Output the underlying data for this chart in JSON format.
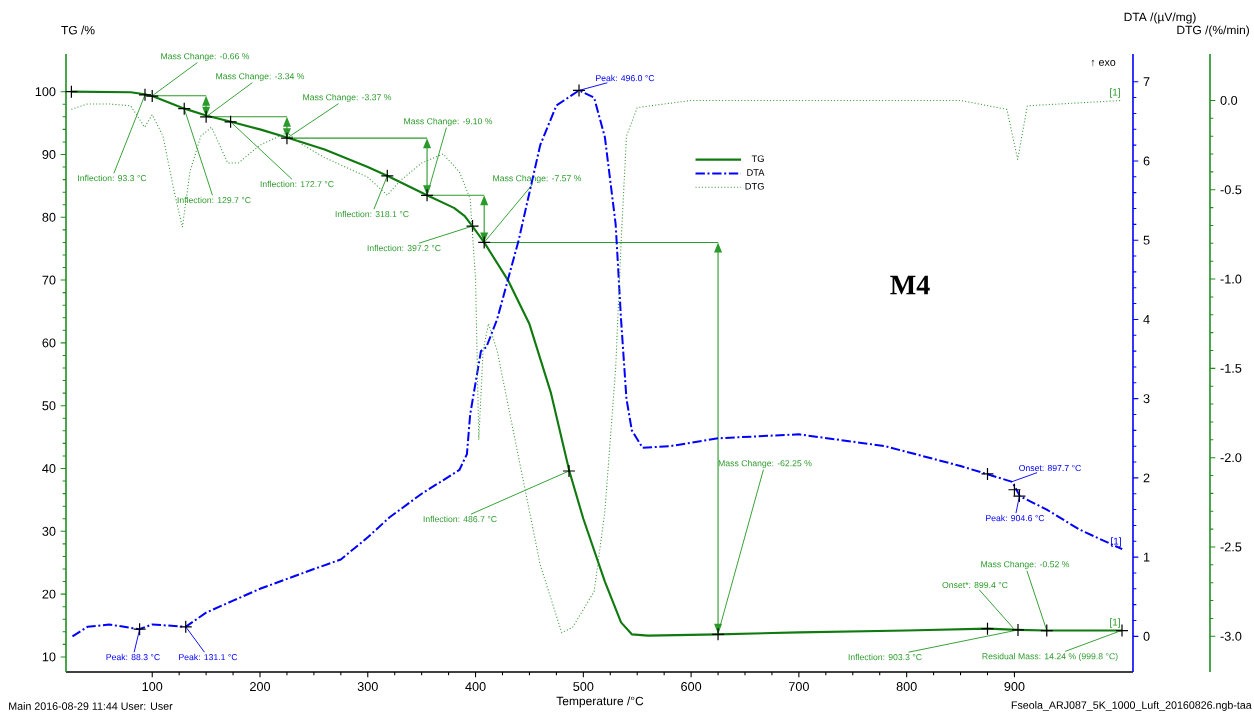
{
  "chart_data": {
    "type": "line",
    "xlabel": "Temperature /°C",
    "ylabel": "TG /%",
    "y2label": "DTA /(µV/mg)",
    "y3label": "DTG /(%/min)",
    "xlim": [
      20,
      1010
    ],
    "xticks": [
      100,
      200,
      300,
      400,
      500,
      600,
      700,
      800,
      900
    ],
    "ylim": [
      7.6,
      106
    ],
    "yticks": [
      10,
      20,
      30,
      40,
      50,
      60,
      70,
      80,
      90,
      100
    ],
    "y2lim": [
      -0.45,
      7.35
    ],
    "y2ticks": [
      0,
      1,
      2,
      3,
      4,
      5,
      6,
      7
    ],
    "y3lim": [
      -3.2,
      0.26
    ],
    "y3ticks": [
      {
        "value": -3,
        "label": "-3.0"
      },
      -2.5,
      {
        "value": -2,
        "label": "-2.0"
      },
      -1.5,
      {
        "value": -1,
        "label": "-1.0"
      },
      -0.5,
      {
        "value": 0,
        "label": "0.0"
      }
    ],
    "legend": "top",
    "series": [
      {
        "name": "TG",
        "color": "#107a10",
        "line_style": "solid",
        "x": [
          25,
          80,
          93,
          100,
          130,
          150,
          173,
          200,
          225,
          260,
          300,
          318,
          355,
          380,
          390,
          397,
          408,
          430,
          450,
          470,
          487,
          500,
          520,
          535,
          545,
          560,
          625,
          700,
          800,
          875,
          903,
          930,
          1000
        ],
        "values": [
          100,
          99.9,
          99.6,
          99.3,
          97.3,
          96.2,
          95.2,
          94,
          92.7,
          90.8,
          88,
          86.6,
          83.5,
          81.5,
          80.2,
          78.6,
          76,
          70,
          63,
          52,
          39.6,
          32,
          22,
          15.5,
          13.6,
          13.4,
          13.6,
          13.9,
          14.2,
          14.5,
          14.3,
          14.2,
          14.2
        ]
      },
      {
        "name": "DTA",
        "axis": "y2",
        "color": "#0000ff",
        "line_style": "dashed",
        "x": [
          26,
          40,
          60,
          88,
          100,
          131,
          150,
          175,
          200,
          250,
          275,
          300,
          320,
          350,
          385,
          392,
          395,
          400,
          405,
          410,
          420,
          430,
          440,
          450,
          460,
          475,
          496,
          510,
          520,
          530,
          535,
          540,
          545,
          555,
          580,
          625,
          700,
          780,
          850,
          898,
          905,
          930,
          960,
          1000
        ],
        "values": [
          0,
          0.12,
          0.15,
          0.09,
          0.15,
          0.12,
          0.3,
          0.45,
          0.6,
          0.85,
          0.97,
          1.25,
          1.5,
          1.8,
          2.1,
          2.3,
          2.8,
          3.2,
          3.6,
          3.65,
          4.0,
          4.5,
          5.0,
          5.6,
          6.2,
          6.7,
          6.89,
          6.8,
          6.3,
          5.2,
          4.0,
          3.0,
          2.6,
          2.38,
          2.4,
          2.5,
          2.55,
          2.4,
          2.15,
          1.95,
          1.77,
          1.6,
          1.35,
          1.1
        ]
      },
      {
        "name": "DTG",
        "axis": "y3",
        "color": "#3a9a3a",
        "line_style": "dotted",
        "x": [
          25,
          40,
          60,
          80,
          93,
          100,
          110,
          120,
          128,
          135,
          145,
          155,
          170,
          180,
          200,
          225,
          240,
          260,
          300,
          318,
          330,
          350,
          370,
          385,
          395,
          400,
          403,
          407,
          412,
          420,
          440,
          460,
          480,
          490,
          500,
          510,
          520,
          530,
          535,
          540,
          550,
          600,
          700,
          850,
          893,
          903,
          912,
          1000
        ],
        "values": [
          -0.05,
          -0.02,
          -0.02,
          -0.03,
          -0.15,
          -0.08,
          -0.2,
          -0.5,
          -0.71,
          -0.4,
          -0.2,
          -0.15,
          -0.35,
          -0.35,
          -0.25,
          -0.18,
          -0.25,
          -0.32,
          -0.43,
          -0.53,
          -0.45,
          -0.35,
          -0.3,
          -0.4,
          -0.55,
          -1.0,
          -1.9,
          -1.4,
          -1.25,
          -1.4,
          -2.0,
          -2.6,
          -2.98,
          -2.95,
          -2.85,
          -2.75,
          -2.3,
          -1.5,
          -0.8,
          -0.2,
          -0.04,
          0,
          0,
          0,
          -0.05,
          -0.33,
          -0.03,
          0
        ]
      },
      {
        "type": "scatter",
        "marker": "cross",
        "color": "#000000",
        "x": [
          25,
          93.3,
          100,
          129.7,
          150,
          172.7,
          225,
          318.1,
          355,
          397.2,
          408,
          486.7,
          625,
          875,
          903.3,
          930,
          999.8
        ],
        "values": [
          100,
          99.5,
          99.3,
          97.3,
          96.0,
          95.2,
          92.6,
          86.6,
          83.5,
          78.6,
          76,
          39.6,
          13.6,
          14.5,
          14.3,
          14.2,
          14.2
        ]
      },
      {
        "type": "scatter",
        "axis": "y2",
        "marker": "cross",
        "color": "#000000",
        "x": [
          88.3,
          131.1,
          496,
          875,
          900,
          904.6
        ],
        "values": [
          0.09,
          0.12,
          6.89,
          2.05,
          1.85,
          1.77
        ]
      }
    ],
    "annotations": [
      {
        "text": "Mass Change: -0.66 %",
        "x": 100,
        "y": 99.34
      },
      {
        "text": "Mass Change: -3.34 %",
        "x": 150,
        "y": 96.0
      },
      {
        "text": "Mass Change: -3.37 %",
        "x": 225,
        "y": 92.6
      },
      {
        "text": "Mass Change: -9.10 %",
        "x": 355,
        "y": 83.5
      },
      {
        "text": "Mass Change: -7.57 %",
        "x": 408,
        "y": 76.0
      },
      {
        "text": "Mass Change: -62.25 %",
        "x": 625,
        "y": 13.7
      },
      {
        "text": "Mass Change: -0.52 %",
        "x": 930,
        "y": 14.2
      },
      {
        "text": "Inflection: 93.3 °C",
        "x": 93.3,
        "y": 99.5
      },
      {
        "text": "Inflection: 129.7 °C",
        "x": 129.7,
        "y": 97.3
      },
      {
        "text": "Inflection: 172.7 °C",
        "x": 172.7,
        "y": 95.2
      },
      {
        "text": "Inflection: 318.1 °C",
        "x": 318.1,
        "y": 86.6
      },
      {
        "text": "Inflection: 397.2 °C",
        "x": 397.2,
        "y": 78.6
      },
      {
        "text": "Inflection: 486.7 °C",
        "x": 486.7,
        "y": 39.6
      },
      {
        "text": "Inflection: 903.3 °C",
        "x": 903.3,
        "y": 14.3
      },
      {
        "text": "Onset*: 899.4 °C",
        "x": 899.4,
        "y": 14.5
      },
      {
        "text": "Residual Mass: 14.24 % (999.8 °C)",
        "x": 999.8,
        "y": 14.24
      },
      {
        "text": "Peak: 88.3 °C",
        "x": 88.3,
        "y": 14.4
      },
      {
        "text": "Peak: 131.1 °C",
        "x": 131.1,
        "y": 14.8
      },
      {
        "text": "Peak: 496.0 °C",
        "x": 496.0,
        "y": 100.2
      },
      {
        "text": "Onset: 897.7 °C",
        "x": 897.7,
        "y": 37.9
      },
      {
        "text": "Peak: 904.6 °C",
        "x": 904.6,
        "y": 35.6
      },
      "[1]",
      "[1]",
      "[1]",
      "M4",
      "↑ exo",
      "Main 2016-08-29 11:44 User: User",
      "Fseola_ARJ087_5K_1000_Luft_20160826.ngb-taa"
    ]
  }
}
